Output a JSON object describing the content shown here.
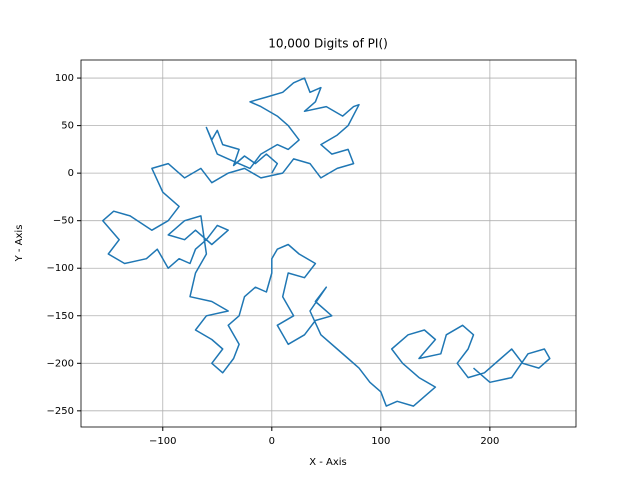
{
  "chart_data": {
    "type": "line",
    "title": "10,000 Digits of PI()",
    "x_label": "X - Axis",
    "y_label": "Y - Axis",
    "color": "#1f77b4",
    "grid": true,
    "xlim": [
      -175,
      279
    ],
    "ylim": [
      -267,
      119
    ],
    "xticks": [
      {
        "value": -100,
        "label": "−100"
      },
      0,
      100,
      200
    ],
    "yticks": [
      {
        "value": -250,
        "label": "−250"
      },
      {
        "value": -200,
        "label": "−200"
      },
      {
        "value": -150,
        "label": "−150"
      },
      {
        "value": -100,
        "label": "−100"
      },
      {
        "value": -50,
        "label": "−50"
      },
      0,
      50,
      100
    ],
    "x": [
      0,
      5,
      -5,
      -15,
      -25,
      -35,
      -30,
      -45,
      -50,
      -55,
      -60,
      -50,
      -40,
      -20,
      -10,
      5,
      15,
      25,
      15,
      5,
      -10,
      -20,
      -5,
      10,
      20,
      30,
      35,
      45,
      40,
      30,
      50,
      65,
      75,
      80,
      70,
      60,
      45,
      55,
      70,
      75,
      60,
      45,
      35,
      20,
      10,
      -10,
      -25,
      -40,
      -55,
      -65,
      -80,
      -95,
      -110,
      -100,
      -85,
      -95,
      -110,
      -130,
      -145,
      -155,
      -140,
      -150,
      -135,
      -115,
      -105,
      -95,
      -85,
      -75,
      -70,
      -60,
      -50,
      -40,
      -55,
      -70,
      -80,
      -95,
      -80,
      -65,
      -60,
      -70,
      -75,
      -55,
      -40,
      -60,
      -70,
      -55,
      -45,
      -55,
      -45,
      -35,
      -30,
      -40,
      -30,
      -25,
      -15,
      -5,
      0,
      0,
      5,
      15,
      25,
      40,
      30,
      15,
      10,
      20,
      5,
      15,
      30,
      40,
      55,
      40,
      50,
      35,
      45,
      60,
      70,
      80,
      90,
      100,
      105,
      115,
      130,
      140,
      150,
      135,
      120,
      110,
      125,
      140,
      150,
      135,
      155,
      160,
      175,
      185,
      180,
      170,
      180,
      195,
      210,
      220,
      230,
      245,
      255,
      250,
      235,
      220,
      200,
      185
    ],
    "values": [
      0,
      10,
      20,
      10,
      18,
      8,
      25,
      30,
      45,
      35,
      48,
      20,
      15,
      5,
      20,
      30,
      25,
      35,
      50,
      60,
      70,
      75,
      80,
      85,
      95,
      100,
      85,
      90,
      75,
      65,
      70,
      60,
      70,
      72,
      50,
      40,
      30,
      20,
      25,
      10,
      5,
      -5,
      10,
      15,
      0,
      -5,
      5,
      0,
      -10,
      5,
      -5,
      10,
      5,
      -20,
      -35,
      -50,
      -60,
      -45,
      -40,
      -50,
      -70,
      -85,
      -95,
      -90,
      -80,
      -100,
      -90,
      -95,
      -80,
      -70,
      -55,
      -60,
      -75,
      -60,
      -70,
      -65,
      -50,
      -45,
      -85,
      -105,
      -130,
      -135,
      -145,
      -150,
      -165,
      -175,
      -185,
      -200,
      -210,
      -195,
      -180,
      -160,
      -150,
      -130,
      -120,
      -125,
      -105,
      -90,
      -80,
      -75,
      -85,
      -95,
      -110,
      -105,
      -130,
      -150,
      -160,
      -180,
      -170,
      -155,
      -150,
      -135,
      -120,
      -145,
      -170,
      -185,
      -195,
      -205,
      -220,
      -230,
      -245,
      -240,
      -245,
      -235,
      -225,
      -215,
      -200,
      -185,
      -170,
      -165,
      -175,
      -195,
      -190,
      -170,
      -160,
      -170,
      -185,
      -200,
      -215,
      -210,
      -195,
      -185,
      -200,
      -205,
      -195,
      -185,
      -190,
      -215,
      -220,
      -205
    ]
  }
}
